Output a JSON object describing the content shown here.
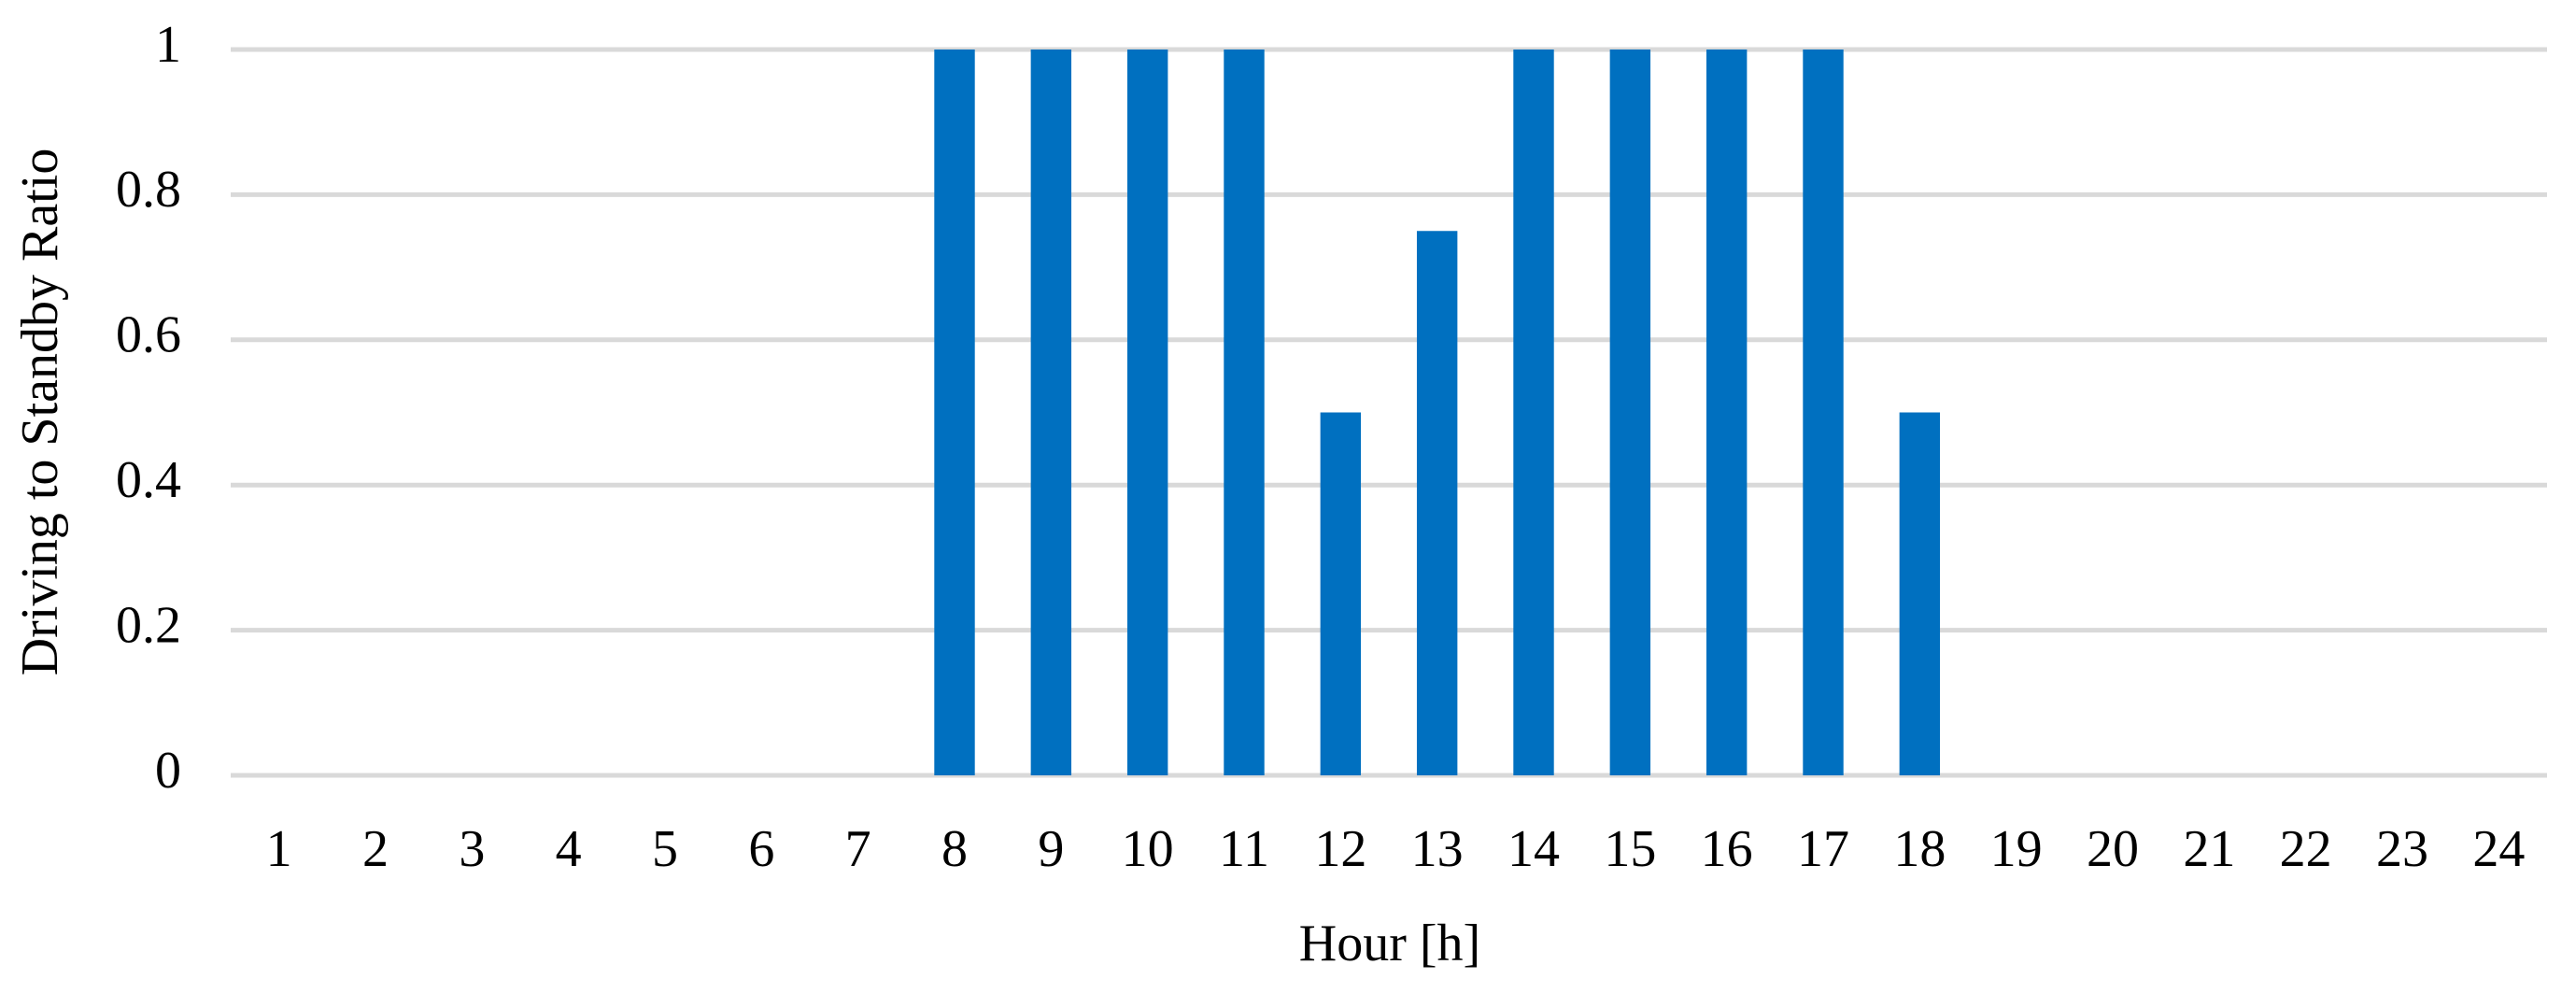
{
  "chart_data": {
    "type": "bar",
    "x_label": "Hour [h]",
    "y_label": "Driving to Standby Ratio",
    "categories": [
      "1",
      "2",
      "3",
      "4",
      "5",
      "6",
      "7",
      "8",
      "9",
      "10",
      "11",
      "12",
      "13",
      "14",
      "15",
      "16",
      "17",
      "18",
      "19",
      "20",
      "21",
      "22",
      "23",
      "24"
    ],
    "values": [
      0,
      0,
      0,
      0,
      0,
      0,
      0,
      1,
      1,
      1,
      1,
      0.5,
      0.75,
      1,
      1,
      1,
      1,
      0.5,
      0,
      0,
      0,
      0,
      0,
      0
    ],
    "color": "#0070c0",
    "ylim": [
      0,
      1
    ],
    "yticks": [
      0,
      0.2,
      0.4,
      0.6,
      0.8,
      1
    ],
    "grid": true
  }
}
